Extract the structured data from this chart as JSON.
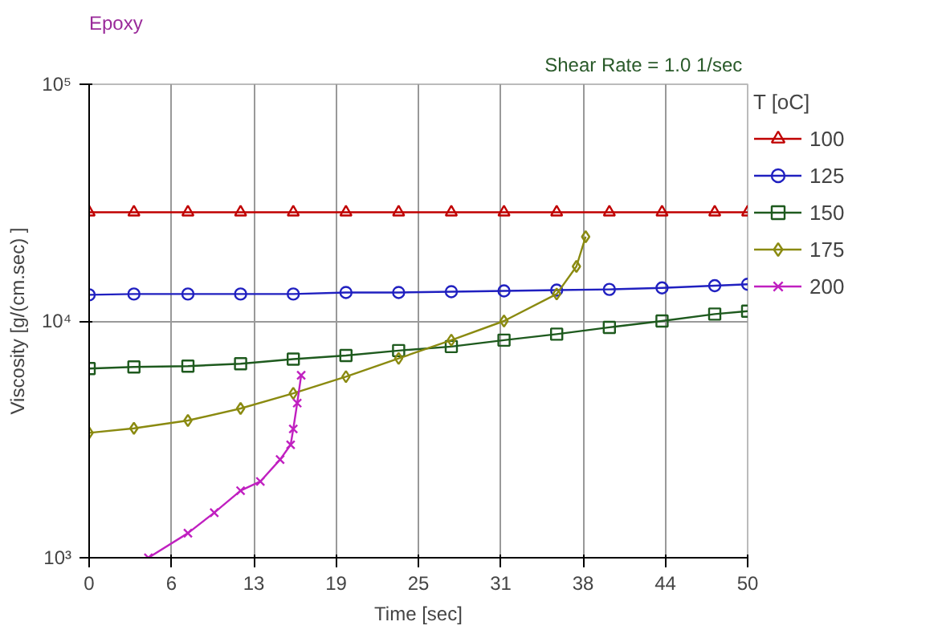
{
  "chart_data": {
    "type": "line",
    "title": "Epoxy",
    "xlabel": "Time [sec]",
    "ylabel": "Viscosity [g/(cm.sec) ]",
    "legend_title": "T [oC]",
    "annotations": [
      "Shear Rate =  1.0 1/sec"
    ],
    "log": "y",
    "grid": true,
    "legend": "right",
    "line_style": "solid",
    "xlim": [
      0,
      50
    ],
    "ylim": [
      1000,
      100000
    ],
    "xticks": [
      0,
      {
        "value": 6.25,
        "label": "6"
      },
      {
        "value": 12.5,
        "label": "13"
      },
      {
        "value": 18.75,
        "label": "19"
      },
      25,
      {
        "value": 31.25,
        "label": "31"
      },
      {
        "value": 37.5,
        "label": "38"
      },
      {
        "value": 43.75,
        "label": "44"
      },
      50
    ],
    "yticks": [
      {
        "value": 1000,
        "label": "10³"
      },
      {
        "value": 10000,
        "label": "10⁴"
      },
      {
        "value": 100000,
        "label": "10⁵"
      }
    ],
    "series": [
      {
        "name": "100",
        "color": "#c00000",
        "marker": "triangle",
        "x": [
          0,
          3.4,
          7.5,
          11.5,
          15.5,
          19.5,
          23.5,
          27.5,
          31.5,
          35.5,
          39.5,
          43.5,
          47.5,
          50
        ],
        "values": [
          28800,
          28800,
          28800,
          28800,
          28800,
          28800,
          28800,
          28800,
          28800,
          28800,
          28800,
          28800,
          28800,
          28800
        ]
      },
      {
        "name": "125",
        "color": "#2020c0",
        "marker": "circle",
        "x": [
          0,
          3.4,
          7.5,
          11.5,
          15.5,
          19.5,
          23.5,
          27.5,
          31.5,
          35.5,
          39.5,
          43.5,
          47.5,
          50
        ],
        "values": [
          12900,
          13000,
          13000,
          13000,
          13000,
          13200,
          13200,
          13300,
          13400,
          13500,
          13600,
          13800,
          14100,
          14300
        ]
      },
      {
        "name": "150",
        "color": "#1e5a1e",
        "marker": "square",
        "x": [
          0,
          3.4,
          7.5,
          11.5,
          15.5,
          19.5,
          23.5,
          27.5,
          31.5,
          35.5,
          39.5,
          43.5,
          47.5,
          50
        ],
        "values": [
          6300,
          6400,
          6450,
          6600,
          6900,
          7150,
          7500,
          7800,
          8300,
          8800,
          9400,
          10000,
          10700,
          11000
        ]
      },
      {
        "name": "175",
        "color": "#8a8a10",
        "marker": "diamond",
        "x": [
          0,
          3.4,
          7.5,
          11.5,
          15.5,
          19.5,
          23.5,
          27.5,
          31.5,
          35.5,
          37,
          37.7
        ],
        "values": [
          3370,
          3520,
          3800,
          4270,
          4950,
          5820,
          6950,
          8300,
          10000,
          13000,
          17000,
          22700
        ]
      },
      {
        "name": "200",
        "color": "#c020c0",
        "marker": "cross",
        "x": [
          4.5,
          7.5,
          9.5,
          11.5,
          13,
          14.5,
          15.3,
          15.5,
          15.8,
          16.1
        ],
        "values": [
          1000,
          1270,
          1550,
          1920,
          2100,
          2600,
          3000,
          3500,
          4500,
          5900
        ]
      }
    ]
  }
}
